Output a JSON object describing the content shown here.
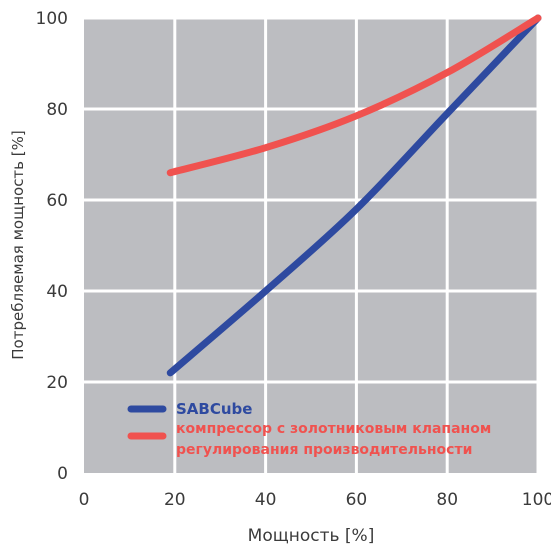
{
  "chart_data": {
    "type": "line",
    "title": "",
    "xlabel": "Мощность [%]",
    "ylabel": "Потребляемая мощность [%]",
    "xlim": [
      0,
      100
    ],
    "ylim": [
      0,
      100
    ],
    "xticks": [
      0,
      20,
      40,
      60,
      80,
      100
    ],
    "yticks": [
      0,
      20,
      40,
      60,
      80,
      100
    ],
    "grid": true,
    "background_color": "#bcbdc1",
    "grid_color": "#ffffff",
    "legend_position": "bottom-left inside plot",
    "series": [
      {
        "name": "SABCube",
        "color": "#2e4aa0",
        "x": [
          19,
          40,
          60,
          80,
          100
        ],
        "y": [
          22,
          40,
          58,
          79,
          100
        ]
      },
      {
        "name_lines": [
          "компрессор с золотниковым клапаном",
          "регулирования производительности"
        ],
        "color": "#f0524f",
        "x": [
          19,
          40,
          60,
          80,
          100
        ],
        "y": [
          66,
          71.5,
          78.5,
          88,
          100
        ]
      }
    ]
  }
}
